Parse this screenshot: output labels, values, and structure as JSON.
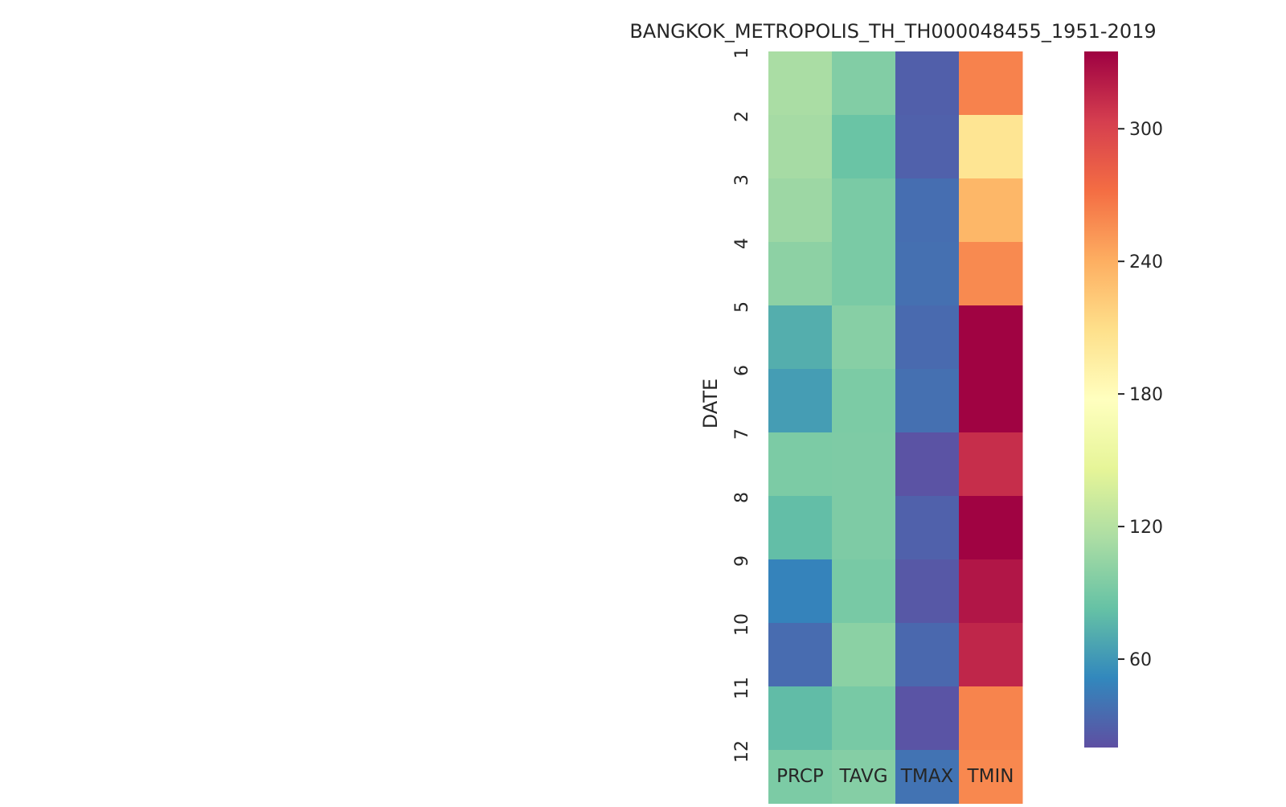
{
  "chart_data": {
    "type": "heatmap",
    "title": "BANGKOK_METROPOLIS_TH_TH000048455_1951-2019",
    "ylabel": "DATE",
    "xlabel": "",
    "columns": [
      "PRCP",
      "TAVG",
      "TMAX",
      "TMIN"
    ],
    "rows": [
      "1",
      "2",
      "3",
      "4",
      "5",
      "6",
      "7",
      "8",
      "9",
      "10",
      "11",
      "12"
    ],
    "values": [
      [
        114,
        96,
        29,
        262
      ],
      [
        112,
        85,
        30,
        204
      ],
      [
        108,
        92,
        37,
        235
      ],
      [
        101,
        92,
        38,
        258
      ],
      [
        72,
        98,
        35,
        334
      ],
      [
        63,
        93,
        38,
        334
      ],
      [
        93,
        94,
        22,
        312
      ],
      [
        81,
        94,
        30,
        334
      ],
      [
        49,
        91,
        25,
        324
      ],
      [
        36,
        100,
        34,
        316
      ],
      [
        80,
        91,
        23,
        261
      ],
      [
        93,
        97,
        40,
        259
      ]
    ],
    "colormap": "Spectral_r",
    "colorbar": {
      "min": 20,
      "max": 335,
      "ticks": [
        60,
        120,
        180,
        240,
        300
      ]
    }
  }
}
